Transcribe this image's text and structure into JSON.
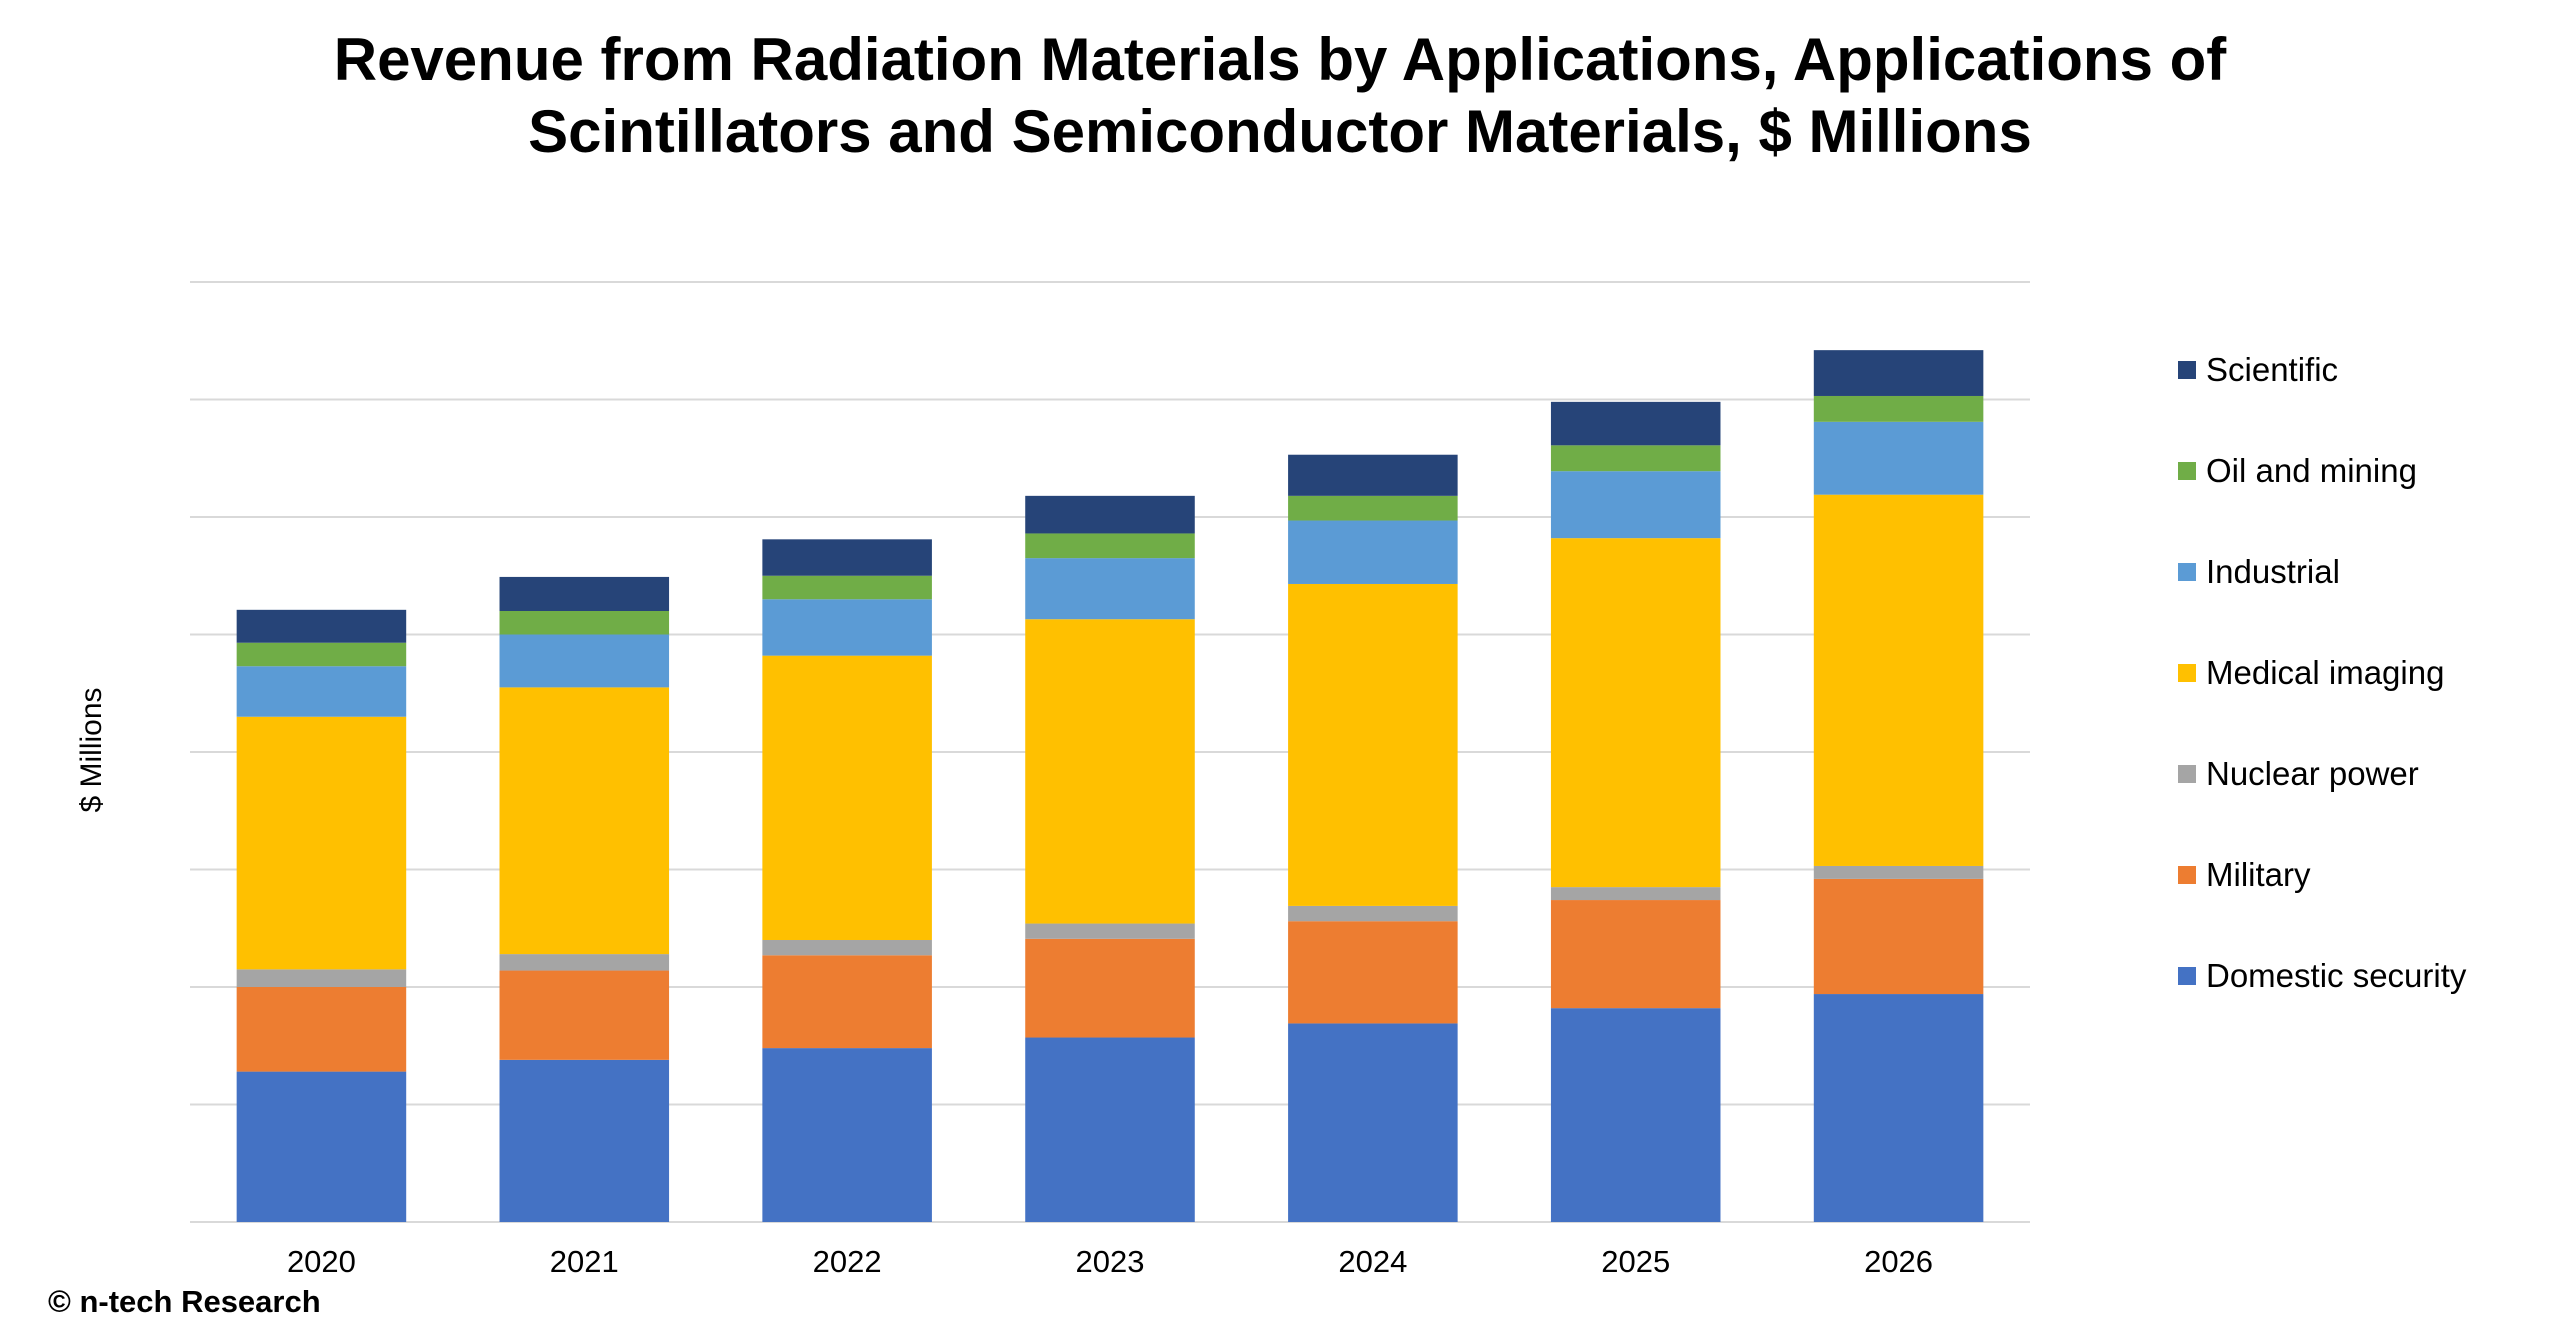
{
  "chart_data": {
    "type": "bar",
    "stacked": true,
    "title": [
      "Revenue from Radiation Materials by Applications, Applications of",
      "Scintillators and Semiconductor Materials, $ Millions"
    ],
    "ylabel": "$ Millions",
    "xlabel": "",
    "y_tick_labels_shown": false,
    "grid": true,
    "legend_position": "right",
    "ylim": [
      0,
      8
    ],
    "categories": [
      "2020",
      "2021",
      "2022",
      "2023",
      "2024",
      "2025",
      "2026"
    ],
    "series": [
      {
        "name": "Domestic security",
        "color": "#4472C4",
        "values": [
          1.28,
          1.38,
          1.48,
          1.57,
          1.69,
          1.82,
          1.94
        ]
      },
      {
        "name": "Military",
        "color": "#ED7D31",
        "values": [
          0.72,
          0.76,
          0.79,
          0.84,
          0.87,
          0.92,
          0.98
        ]
      },
      {
        "name": "Nuclear power",
        "color": "#A5A5A5",
        "values": [
          0.15,
          0.14,
          0.13,
          0.13,
          0.13,
          0.11,
          0.11
        ]
      },
      {
        "name": "Medical imaging",
        "color": "#FFC000",
        "values": [
          2.15,
          2.27,
          2.42,
          2.59,
          2.74,
          2.97,
          3.16
        ]
      },
      {
        "name": "Industrial",
        "color": "#5B9BD5",
        "values": [
          0.43,
          0.45,
          0.48,
          0.52,
          0.54,
          0.57,
          0.62
        ]
      },
      {
        "name": "Oil and mining",
        "color": "#70AD47",
        "values": [
          0.2,
          0.2,
          0.2,
          0.21,
          0.21,
          0.22,
          0.22
        ]
      },
      {
        "name": "Scientific",
        "color": "#264478",
        "values": [
          0.28,
          0.29,
          0.31,
          0.32,
          0.35,
          0.37,
          0.39
        ]
      }
    ],
    "legend_order": [
      "Scientific",
      "Oil and mining",
      "Industrial",
      "Medical imaging",
      "Nuclear power",
      "Military",
      "Domestic security"
    ]
  },
  "footer": {
    "copyright": "© n-tech Research"
  },
  "colors": {
    "gridline": "#D9D9D9",
    "axis": "#D9D9D9"
  }
}
